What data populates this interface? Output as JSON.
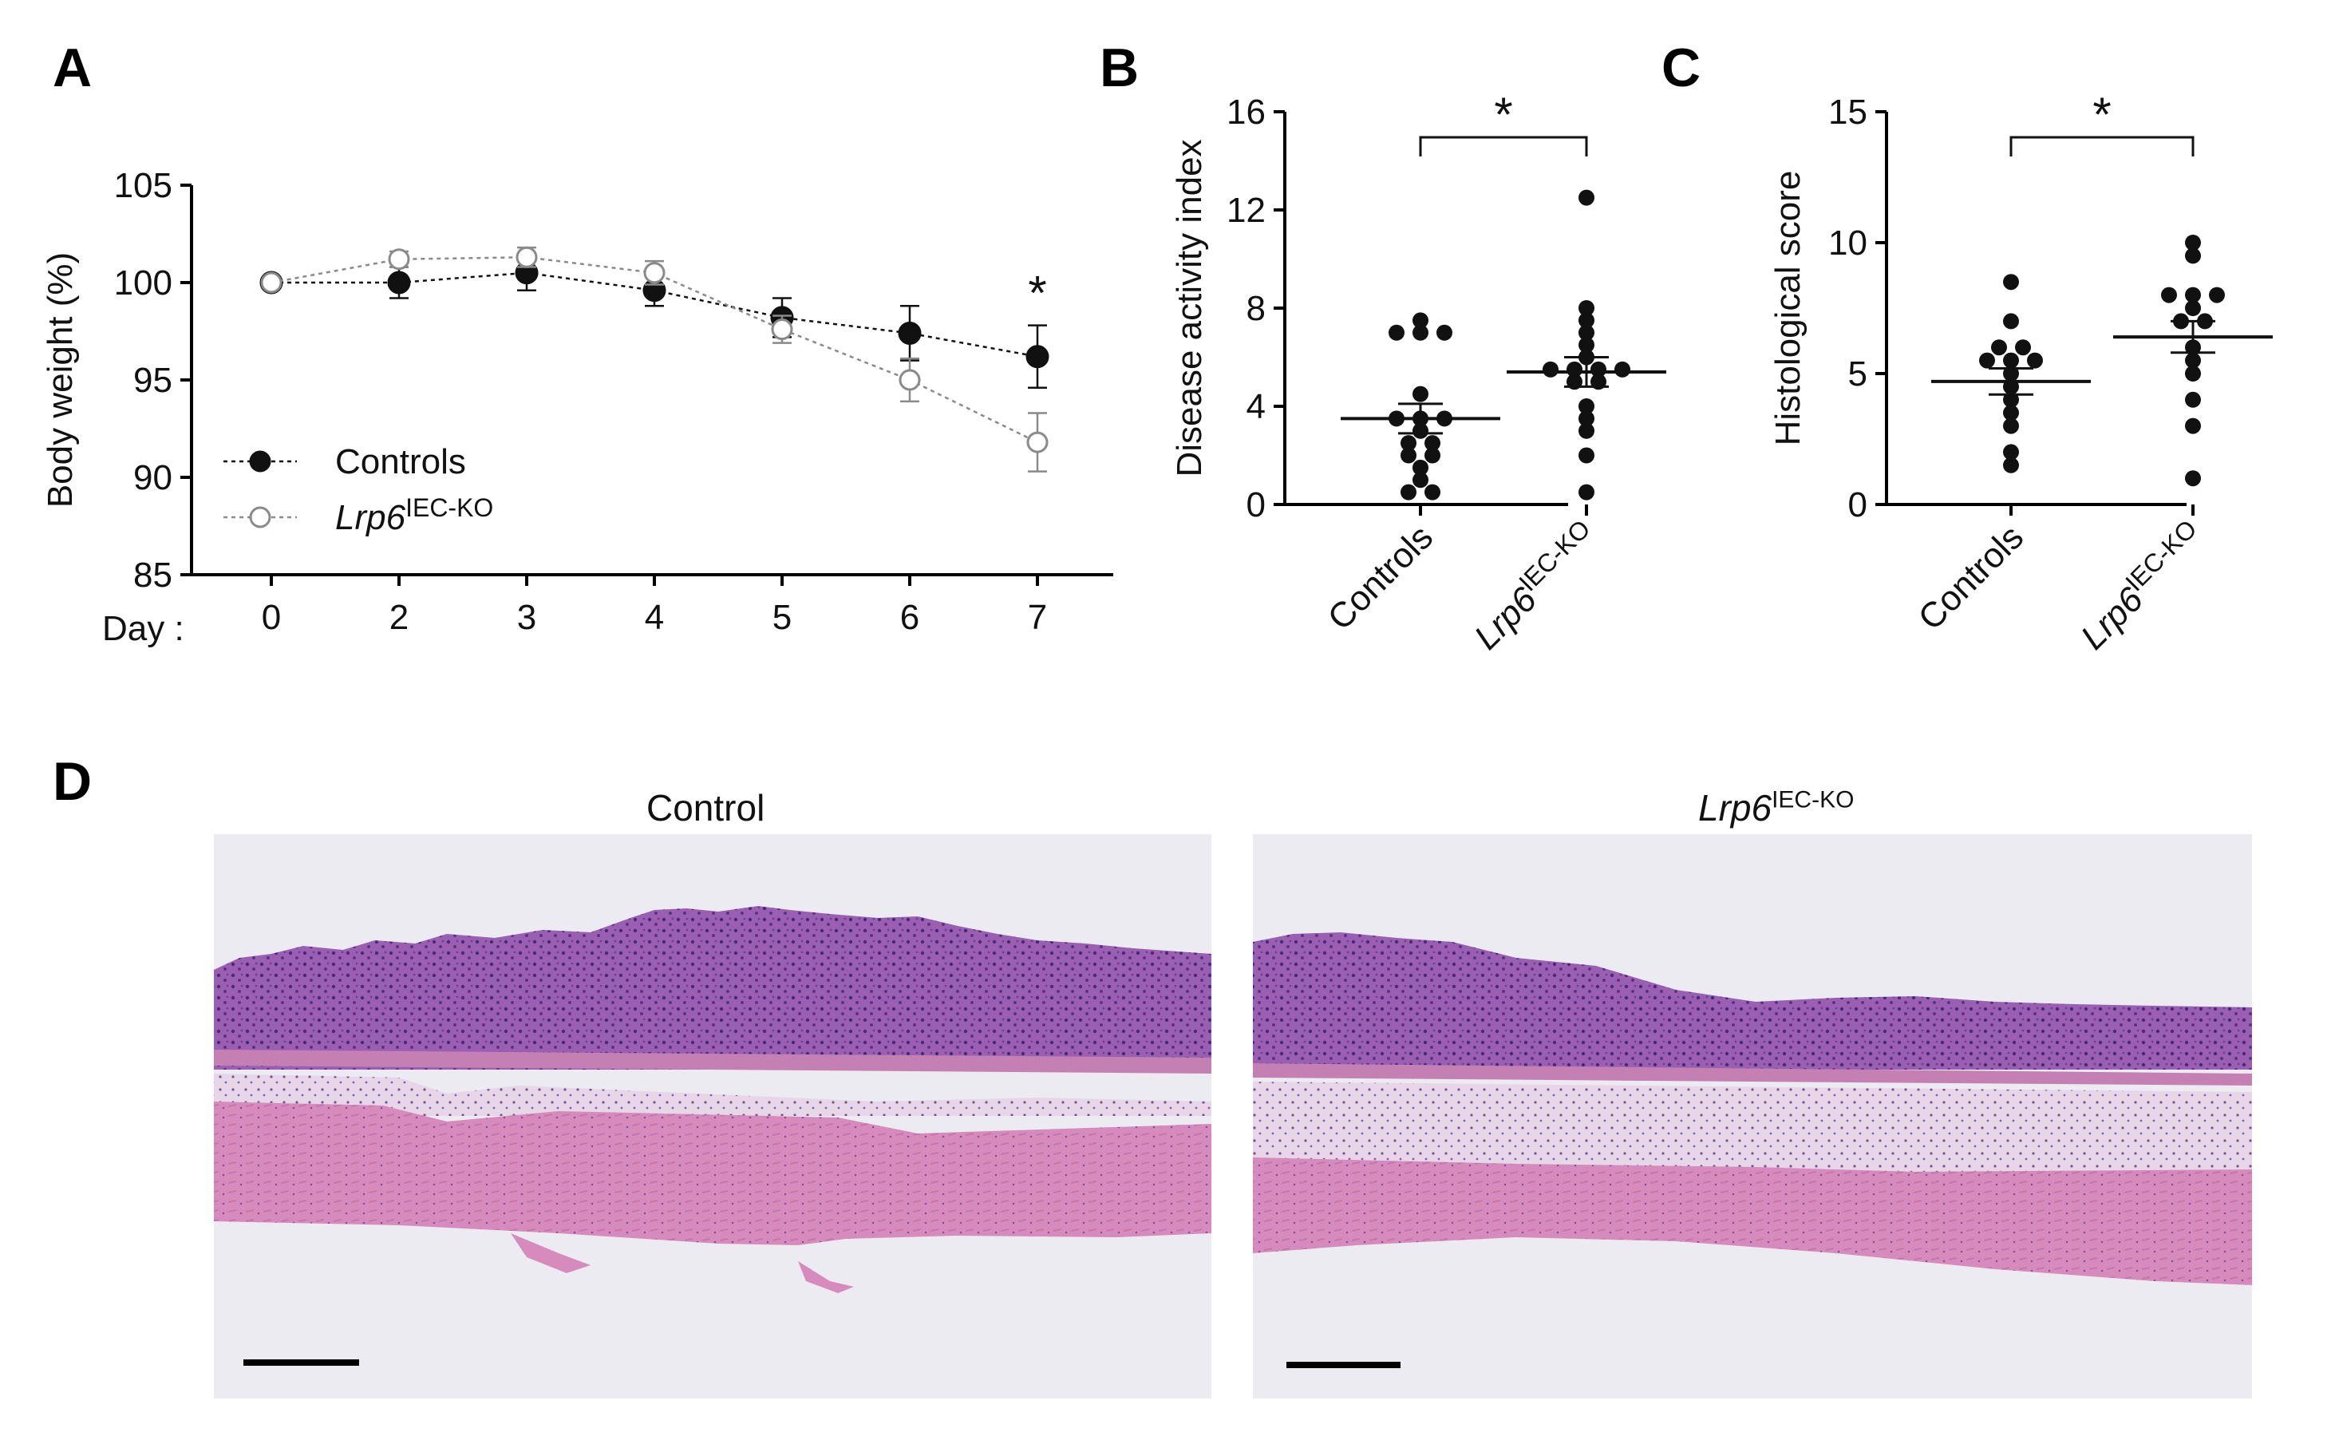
{
  "panels": {
    "a": "A",
    "b": "B",
    "c": "C",
    "d": "D"
  },
  "chart_data": [
    {
      "type": "line",
      "id": "A",
      "ylabel": "Body weight (%)",
      "xlabel": "Day :",
      "x": [
        "0",
        "2",
        "3",
        "4",
        "5",
        "6",
        "7"
      ],
      "ylim": [
        85,
        105
      ],
      "yticks": [
        "85",
        "90",
        "95",
        "100",
        "105"
      ],
      "series": [
        {
          "name": "Controls",
          "marker": "filled",
          "values": [
            100,
            100,
            100.5,
            99.6,
            98.2,
            97.4,
            96.2
          ],
          "errors": [
            0,
            0.8,
            0.9,
            0.8,
            1.0,
            1.4,
            1.6
          ]
        },
        {
          "name": "Lrp6",
          "name_sup": "IEC-KO",
          "marker": "open",
          "values": [
            100,
            101.2,
            101.3,
            100.5,
            97.6,
            95.0,
            91.8
          ],
          "errors": [
            0,
            0.4,
            0.5,
            0.6,
            0.7,
            1.1,
            1.5
          ]
        }
      ],
      "annotations": [
        {
          "text": "*",
          "x": "7"
        }
      ],
      "legend": "bottom-left"
    },
    {
      "type": "scatter",
      "id": "B",
      "ylabel": "Disease activity index",
      "categories": [
        "Controls",
        "Lrp6"
      ],
      "category_sup": [
        "",
        "IEC-KO"
      ],
      "ylim": [
        0,
        16
      ],
      "yticks": [
        "0",
        "4",
        "8",
        "12",
        "16"
      ],
      "groups": [
        {
          "name": "Controls",
          "mean": 3.5,
          "sem": 0.6,
          "points": [
            7.5,
            7.0,
            7.0,
            7.0,
            4.5,
            3.5,
            3.5,
            3.5,
            3.0,
            2.5,
            2.5,
            2.0,
            2.0,
            1.5,
            1.0,
            0.5,
            0.5
          ]
        },
        {
          "name": "Lrp6 IEC-KO",
          "mean": 5.4,
          "sem": 0.6,
          "points": [
            12.5,
            8.0,
            7.5,
            7.0,
            6.5,
            6.0,
            5.5,
            5.5,
            5.5,
            5.5,
            5.0,
            5.0,
            4.0,
            3.5,
            3.0,
            2.0,
            0.5
          ]
        }
      ],
      "annotations": [
        {
          "text": "*"
        }
      ]
    },
    {
      "type": "scatter",
      "id": "C",
      "ylabel": "Histological score",
      "categories": [
        "Controls",
        "Lrp6"
      ],
      "category_sup": [
        "",
        "IEC-KO"
      ],
      "ylim": [
        0,
        15
      ],
      "yticks": [
        "0",
        "5",
        "10",
        "15"
      ],
      "groups": [
        {
          "name": "Controls",
          "mean": 4.7,
          "sem": 0.5,
          "points": [
            8.5,
            7.0,
            6.0,
            6.0,
            5.5,
            5.5,
            5.5,
            5.0,
            4.5,
            4.0,
            3.5,
            3.0,
            2.0,
            1.5
          ]
        },
        {
          "name": "Lrp6 IEC-KO",
          "mean": 6.4,
          "sem": 0.6,
          "points": [
            10.0,
            9.5,
            8.0,
            8.0,
            8.0,
            7.5,
            7.0,
            7.0,
            6.0,
            5.5,
            5.0,
            4.0,
            3.0,
            1.0
          ]
        }
      ],
      "annotations": [
        {
          "text": "*"
        }
      ]
    }
  ],
  "micrographs": [
    {
      "title": "Control",
      "title_sup": "",
      "title_italic": false
    },
    {
      "title": "Lrp6",
      "title_sup": "IEC-KO",
      "title_italic": true
    }
  ],
  "colors": {
    "tissue_pink": "#d98ab9",
    "tissue_purple": "#7c4a9c",
    "background": "#eceaf1",
    "ink": "#111111"
  }
}
